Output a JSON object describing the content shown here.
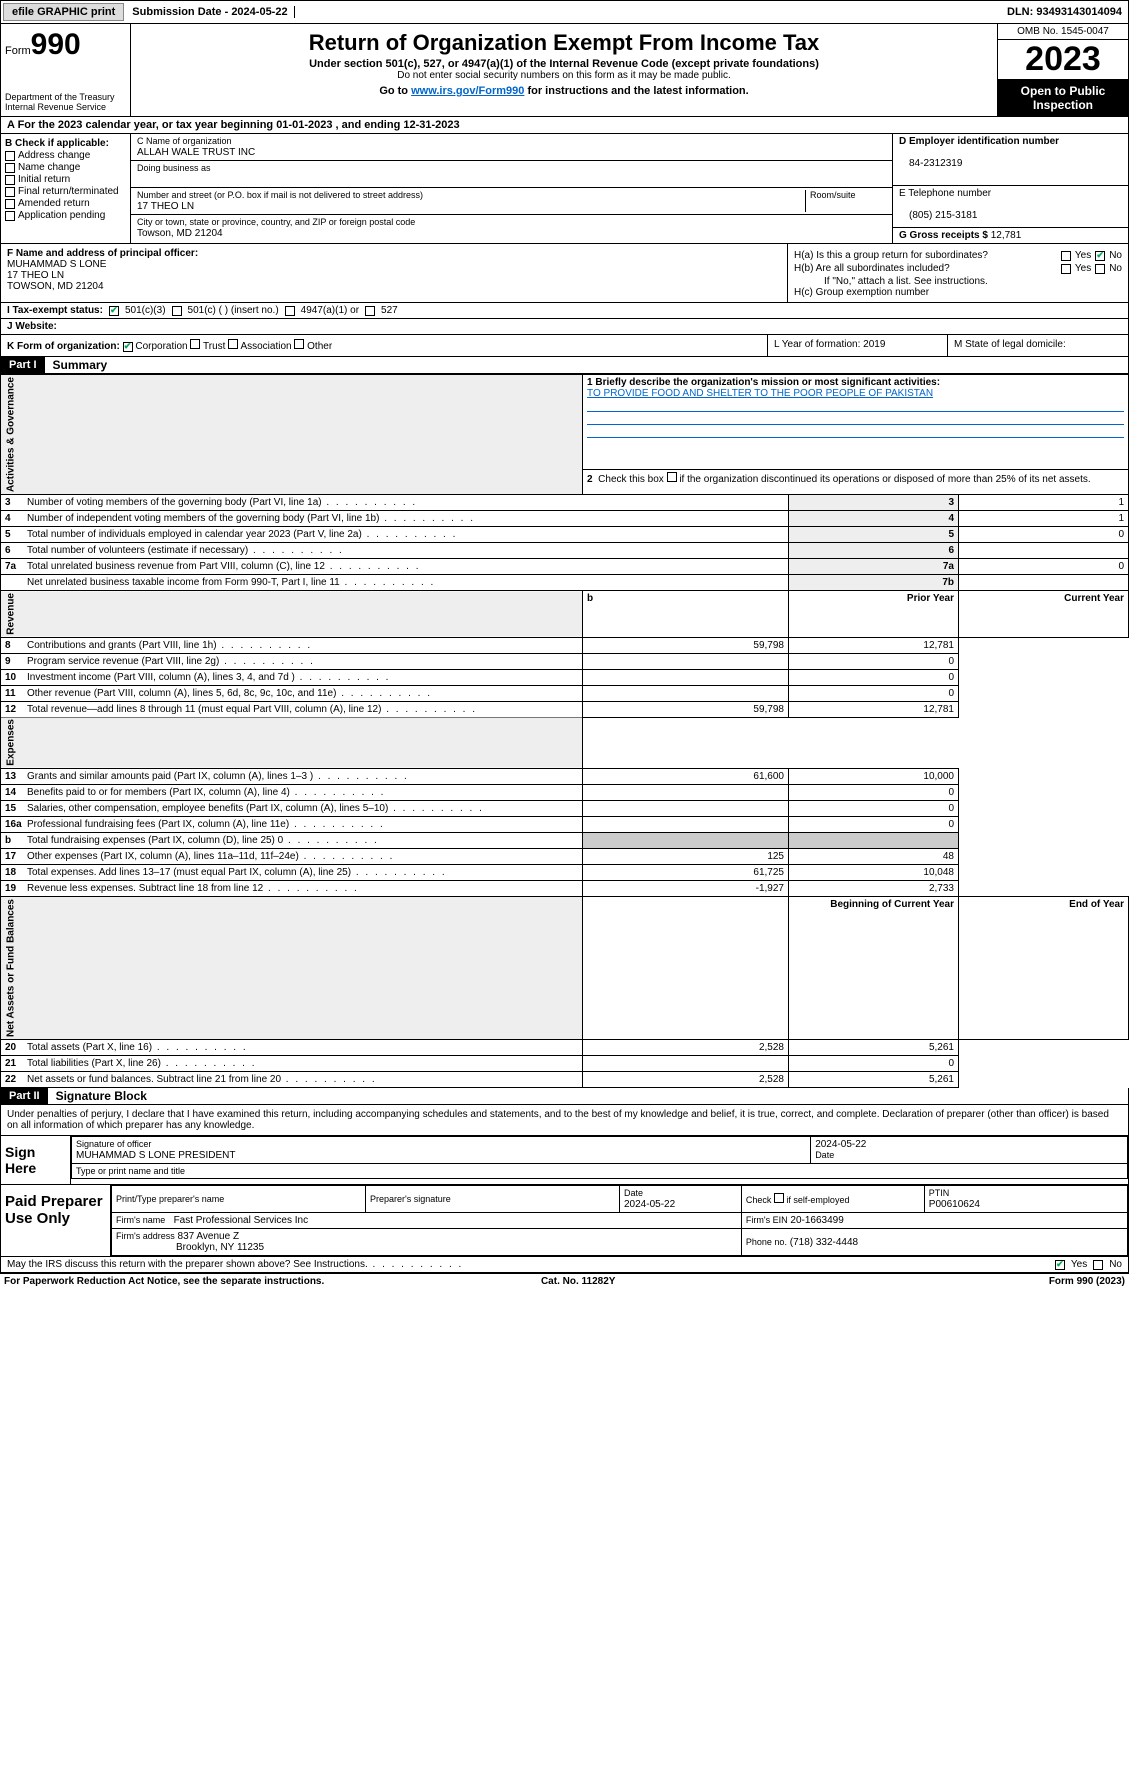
{
  "topbar": {
    "efile": "efile GRAPHIC print",
    "submission": "Submission Date - 2024-05-22",
    "dln": "DLN: 93493143014094"
  },
  "header": {
    "form_label": "Form",
    "form_no": "990",
    "dept": "Department of the Treasury",
    "irs": "Internal Revenue Service",
    "title": "Return of Organization Exempt From Income Tax",
    "sub1": "Under section 501(c), 527, or 4947(a)(1) of the Internal Revenue Code (except private foundations)",
    "sub2": "Do not enter social security numbers on this form as it may be made public.",
    "goto": "Go to ",
    "goto_link": "www.irs.gov/Form990",
    "goto_tail": " for instructions and the latest information.",
    "omb": "OMB No. 1545-0047",
    "year": "2023",
    "open": "Open to Public Inspection"
  },
  "rowA": "A For the 2023 calendar year, or tax year beginning 01-01-2023   , and ending 12-31-2023",
  "colB": {
    "title": "B Check if applicable:",
    "items": [
      "Address change",
      "Name change",
      "Initial return",
      "Final return/terminated",
      "Amended return",
      "Application pending"
    ]
  },
  "colC": {
    "name_lbl": "C Name of organization",
    "name": "ALLAH WALE TRUST INC",
    "dba_lbl": "Doing business as",
    "dba": "",
    "addr_lbl": "Number and street (or P.O. box if mail is not delivered to street address)",
    "room_lbl": "Room/suite",
    "addr": "17 THEO LN",
    "city_lbl": "City or town, state or province, country, and ZIP or foreign postal code",
    "city": "Towson, MD  21204"
  },
  "colD": {
    "ein_lbl": "D Employer identification number",
    "ein": "84-2312319",
    "tel_lbl": "E Telephone number",
    "tel": "(805) 215-3181",
    "gross_lbl": "G Gross receipts $",
    "gross": "12,781"
  },
  "sectF": {
    "lbl": "F  Name and address of principal officer:",
    "name": "MUHAMMAD S LONE",
    "addr1": "17 THEO LN",
    "addr2": "TOWSON, MD  21204"
  },
  "sectH": {
    "ha": "H(a)  Is this a group return for subordinates?",
    "hb": "H(b)  Are all subordinates included?",
    "hb_note": "If \"No,\" attach a list. See instructions.",
    "hc": "H(c)  Group exemption number",
    "yes": "Yes",
    "no": "No"
  },
  "rowI": {
    "lbl": "I   Tax-exempt status:",
    "opts": [
      "501(c)(3)",
      "501(c) (  ) (insert no.)",
      "4947(a)(1) or",
      "527"
    ]
  },
  "rowJ": "J   Website:",
  "rowK": {
    "lbl": "K Form of organization:",
    "opts": [
      "Corporation",
      "Trust",
      "Association",
      "Other"
    ],
    "L": "L Year of formation: 2019",
    "M": "M State of legal domicile:"
  },
  "part1": {
    "hdr": "Part I",
    "title": "Summary",
    "q1_lbl": "1  Briefly describe the organization's mission or most significant activities:",
    "q1_text": "TO PROVIDE FOOD AND SHELTER TO THE POOR PEOPLE OF PAKISTAN",
    "q2": "2   Check this box      if the organization discontinued its operations or disposed of more than 25% of its net assets.",
    "governance_label": "Activities & Governance",
    "rows_gov": [
      {
        "n": "3",
        "t": "Number of voting members of the governing body (Part VI, line 1a)",
        "box": "3",
        "v": "1"
      },
      {
        "n": "4",
        "t": "Number of independent voting members of the governing body (Part VI, line 1b)",
        "box": "4",
        "v": "1"
      },
      {
        "n": "5",
        "t": "Total number of individuals employed in calendar year 2023 (Part V, line 2a)",
        "box": "5",
        "v": "0"
      },
      {
        "n": "6",
        "t": "Total number of volunteers (estimate if necessary)",
        "box": "6",
        "v": ""
      },
      {
        "n": "7a",
        "t": "Total unrelated business revenue from Part VIII, column (C), line 12",
        "box": "7a",
        "v": "0"
      },
      {
        "n": "",
        "t": "Net unrelated business taxable income from Form 990-T, Part I, line 11",
        "box": "7b",
        "v": ""
      }
    ],
    "revenue_label": "Revenue",
    "prior": "Prior Year",
    "current": "Current Year",
    "rows_rev": [
      {
        "n": "8",
        "t": "Contributions and grants (Part VIII, line 1h)",
        "p": "59,798",
        "c": "12,781"
      },
      {
        "n": "9",
        "t": "Program service revenue (Part VIII, line 2g)",
        "p": "",
        "c": "0"
      },
      {
        "n": "10",
        "t": "Investment income (Part VIII, column (A), lines 3, 4, and 7d )",
        "p": "",
        "c": "0"
      },
      {
        "n": "11",
        "t": "Other revenue (Part VIII, column (A), lines 5, 6d, 8c, 9c, 10c, and 11e)",
        "p": "",
        "c": "0"
      },
      {
        "n": "12",
        "t": "Total revenue—add lines 8 through 11 (must equal Part VIII, column (A), line 12)",
        "p": "59,798",
        "c": "12,781"
      }
    ],
    "expenses_label": "Expenses",
    "rows_exp": [
      {
        "n": "13",
        "t": "Grants and similar amounts paid (Part IX, column (A), lines 1–3 )",
        "p": "61,600",
        "c": "10,000"
      },
      {
        "n": "14",
        "t": "Benefits paid to or for members (Part IX, column (A), line 4)",
        "p": "",
        "c": "0"
      },
      {
        "n": "15",
        "t": "Salaries, other compensation, employee benefits (Part IX, column (A), lines 5–10)",
        "p": "",
        "c": "0"
      },
      {
        "n": "16a",
        "t": "Professional fundraising fees (Part IX, column (A), line 11e)",
        "p": "",
        "c": "0"
      },
      {
        "n": "b",
        "t": "Total fundraising expenses (Part IX, column (D), line 25) 0",
        "p": "__SHADE__",
        "c": "__SHADE__"
      },
      {
        "n": "17",
        "t": "Other expenses (Part IX, column (A), lines 11a–11d, 11f–24e)",
        "p": "125",
        "c": "48"
      },
      {
        "n": "18",
        "t": "Total expenses. Add lines 13–17 (must equal Part IX, column (A), line 25)",
        "p": "61,725",
        "c": "10,048"
      },
      {
        "n": "19",
        "t": "Revenue less expenses. Subtract line 18 from line 12",
        "p": "-1,927",
        "c": "2,733"
      }
    ],
    "net_label": "Net Assets or Fund Balances",
    "begin": "Beginning of Current Year",
    "end": "End of Year",
    "rows_net": [
      {
        "n": "20",
        "t": "Total assets (Part X, line 16)",
        "p": "2,528",
        "c": "5,261"
      },
      {
        "n": "21",
        "t": "Total liabilities (Part X, line 26)",
        "p": "",
        "c": "0"
      },
      {
        "n": "22",
        "t": "Net assets or fund balances. Subtract line 21 from line 20",
        "p": "2,528",
        "c": "5,261"
      }
    ]
  },
  "part2": {
    "hdr": "Part II",
    "title": "Signature Block",
    "decl": "Under penalties of perjury, I declare that I have examined this return, including accompanying schedules and statements, and to the best of my knowledge and belief, it is true, correct, and complete. Declaration of preparer (other than officer) is based on all information of which preparer has any knowledge."
  },
  "sign": {
    "lbl": "Sign Here",
    "sig_lbl": "Signature of officer",
    "name": "MUHAMMAD S LONE PRESIDENT",
    "name_lbl": "Type or print name and title",
    "date_lbl": "Date",
    "date": "2024-05-22"
  },
  "paid": {
    "lbl": "Paid Preparer Use Only",
    "prep_name_lbl": "Print/Type preparer's name",
    "prep_sig_lbl": "Preparer's signature",
    "date_lbl": "Date",
    "date": "2024-05-22",
    "check_lbl": "Check        if self-employed",
    "ptin_lbl": "PTIN",
    "ptin": "P00610624",
    "firm_name_lbl": "Firm's name",
    "firm_name": "Fast Professional Services Inc",
    "firm_ein_lbl": "Firm's EIN",
    "firm_ein": "20-1663499",
    "firm_addr_lbl": "Firm's address",
    "firm_addr1": "837 Avenue Z",
    "firm_addr2": "Brooklyn, NY  11235",
    "phone_lbl": "Phone no.",
    "phone": "(718) 332-4448",
    "discuss": "May the IRS discuss this return with the preparer shown above? See Instructions.",
    "yes": "Yes",
    "no": "No"
  },
  "footer": {
    "left": "For Paperwork Reduction Act Notice, see the separate instructions.",
    "mid": "Cat. No. 11282Y",
    "right_a": "Form ",
    "right_b": "990",
    "right_c": " (2023)"
  },
  "colors": {
    "link": "#0066cc",
    "check": "#00aa55",
    "black": "#000000",
    "shade": "#cccccc"
  }
}
